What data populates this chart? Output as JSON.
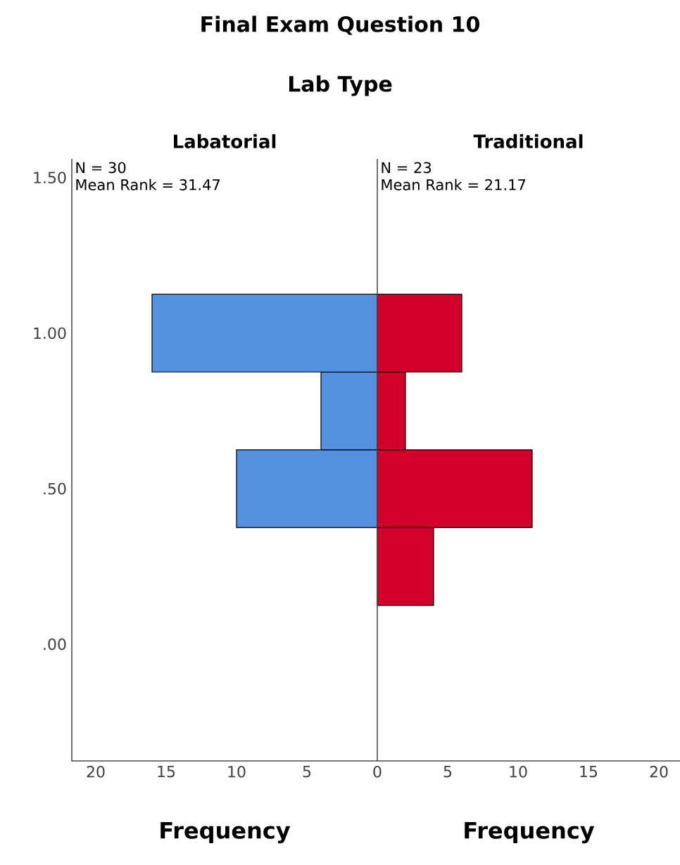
{
  "chart_data": [
    {
      "type": "histogram",
      "orientation": "horizontal",
      "title": "Final Exam Question 10",
      "subtitle": "Lab Type",
      "x2label": "Labatorial",
      "xlabel": "Frequency",
      "bins": [
        0.125,
        0.375,
        0.625,
        0.875,
        1.125
      ],
      "values": [
        0,
        10,
        4,
        16
      ],
      "color": "#5591df",
      "xlim": [
        21.7,
        0
      ],
      "xticks": [
        20,
        15,
        10,
        5,
        0
      ],
      "ylim": [
        -0.375,
        1.56
      ],
      "yticks": [
        {
          "value": 0,
          "label": ".00"
        },
        {
          "value": 0.5,
          "label": ".50"
        },
        {
          "value": 1.0,
          "label": "1.00"
        },
        {
          "value": 1.5,
          "label": "1.50"
        }
      ],
      "annotations": [
        "N = 30",
        "Mean Rank = 31.47"
      ]
    },
    {
      "type": "histogram",
      "orientation": "horizontal",
      "x2label": "Traditional",
      "xlabel": "Frequency",
      "bins": [
        0.125,
        0.375,
        0.625,
        0.875,
        1.125
      ],
      "values": [
        4,
        11,
        2,
        6
      ],
      "color": "#d3002c",
      "xlim": [
        0,
        21.5
      ],
      "xticks": [
        5,
        10,
        15,
        20
      ],
      "ylim": [
        -0.375,
        1.56
      ],
      "tick_labels": "x",
      "annotations": [
        "N = 23",
        "Mean Rank = 21.17"
      ]
    }
  ]
}
